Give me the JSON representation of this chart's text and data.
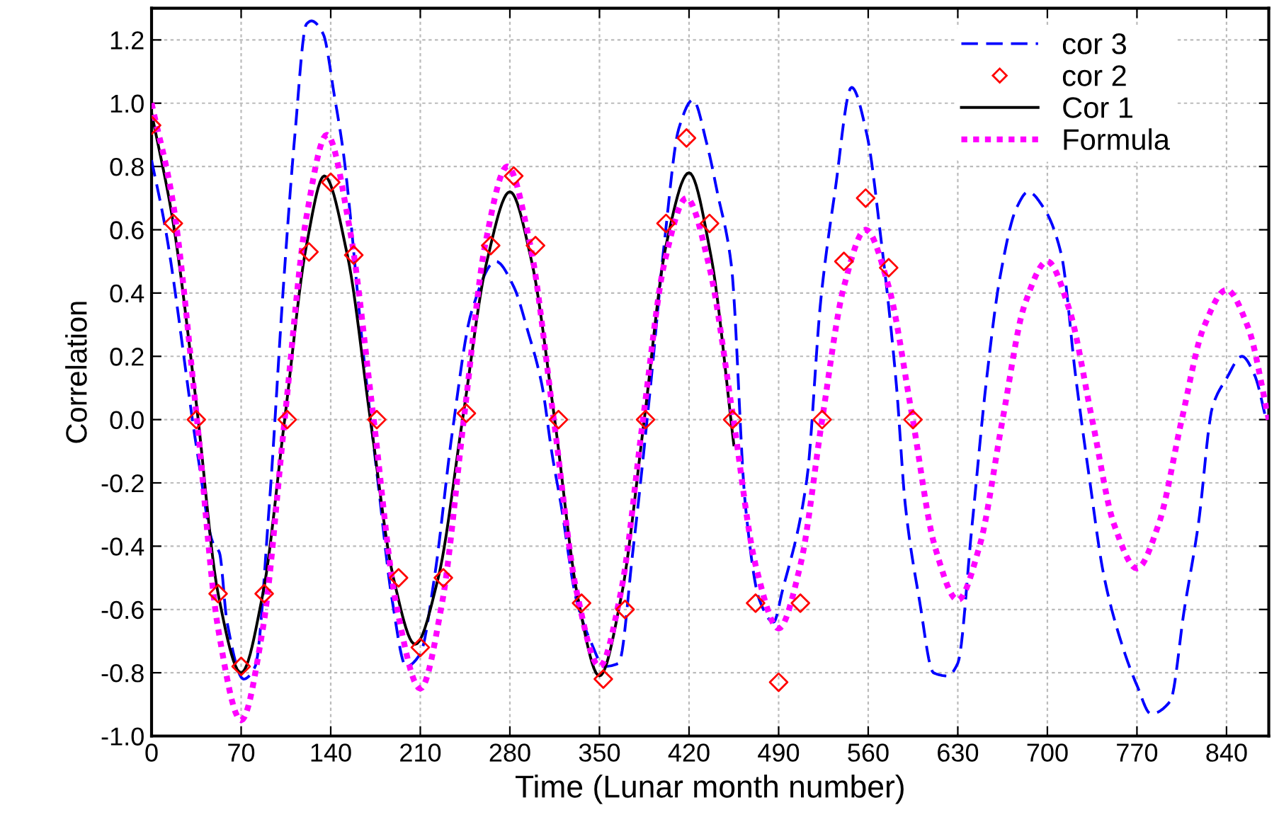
{
  "chart_data": {
    "type": "line",
    "xlabel": "Time (Lunar month number)",
    "ylabel": "Correlation",
    "xlim": [
      0,
      873
    ],
    "ylim": [
      -1.0,
      1.3
    ],
    "xticks": [
      0,
      70,
      140,
      210,
      280,
      350,
      420,
      490,
      560,
      630,
      700,
      770,
      840
    ],
    "yticks": [
      {
        "value": -1.0,
        "label": "-1.0"
      },
      {
        "value": -0.8,
        "label": "-0.8"
      },
      {
        "value": -0.6,
        "label": "-0.6"
      },
      {
        "value": -0.4,
        "label": "-0.4"
      },
      {
        "value": -0.2,
        "label": "-0.2"
      },
      {
        "value": 0.0,
        "label": "0.0"
      },
      {
        "value": 0.2,
        "label": "0.2"
      },
      {
        "value": 0.4,
        "label": "0.4"
      },
      {
        "value": 0.6,
        "label": "0.6"
      },
      {
        "value": 0.8,
        "label": "0.8"
      },
      {
        "value": 1.0,
        "label": "1.0"
      },
      {
        "value": 1.2,
        "label": "1.2"
      }
    ],
    "grid": true,
    "legend": "top right",
    "series": [
      {
        "name": "cor 3",
        "line_style": "dashed",
        "marker": "none",
        "color": "#0000ff",
        "x": [
          0,
          11,
          36,
          48,
          53,
          59,
          72,
          81,
          92,
          103,
          112,
          121,
          125,
          134,
          143,
          150,
          166,
          177,
          188,
          199,
          210,
          221,
          235,
          250,
          269,
          283,
          294,
          305,
          313,
          320,
          332,
          343,
          354,
          365,
          376,
          390,
          401,
          412,
          423,
          434,
          442,
          453,
          464,
          475,
          486,
          493,
          512,
          523,
          534,
          547,
          559,
          570,
          582,
          589,
          600,
          611,
          622,
          630,
          641,
          652,
          663,
          676,
          685,
          697,
          711,
          722,
          733,
          744,
          759,
          770,
          781,
          796,
          807,
          818,
          829,
          840,
          852,
          862,
          871
        ],
        "values": [
          0.82,
          0.6,
          -0.11,
          -0.39,
          -0.42,
          -0.64,
          -0.82,
          -0.78,
          -0.27,
          0.42,
          0.9,
          1.25,
          1.26,
          1.22,
          1.02,
          0.84,
          0.19,
          -0.2,
          -0.57,
          -0.78,
          -0.74,
          -0.5,
          -0.04,
          0.34,
          0.5,
          0.42,
          0.28,
          0.11,
          -0.11,
          -0.27,
          -0.57,
          -0.7,
          -0.78,
          -0.77,
          -0.42,
          0.11,
          0.57,
          0.92,
          1.01,
          0.87,
          0.72,
          0.49,
          -0.27,
          -0.57,
          -0.64,
          -0.54,
          -0.19,
          0.38,
          0.72,
          1.05,
          0.9,
          0.57,
          0.11,
          -0.27,
          -0.57,
          -0.8,
          -0.81,
          -0.77,
          -0.34,
          0.11,
          0.45,
          0.67,
          0.72,
          0.67,
          0.52,
          0.14,
          -0.19,
          -0.49,
          -0.72,
          -0.84,
          -0.93,
          -0.89,
          -0.6,
          -0.33,
          0.04,
          0.13,
          0.2,
          0.14,
          0.0
        ]
      },
      {
        "name": "cor 2",
        "type": "scatter",
        "marker": "diamond",
        "color": "#ff0000",
        "x": [
          0,
          17,
          35,
          52,
          70,
          88,
          106,
          123,
          140,
          158,
          176,
          193,
          210,
          228,
          246,
          265,
          283,
          300,
          318,
          336,
          353,
          370,
          386,
          402,
          418,
          436,
          454,
          472,
          490,
          507,
          524,
          541,
          558,
          576,
          595
        ],
        "values": [
          0.93,
          0.62,
          0.0,
          -0.55,
          -0.78,
          -0.55,
          0.0,
          0.53,
          0.75,
          0.52,
          0.0,
          -0.5,
          -0.72,
          -0.5,
          0.02,
          0.55,
          0.77,
          0.55,
          0.0,
          -0.58,
          -0.82,
          -0.6,
          0.0,
          0.62,
          0.89,
          0.62,
          0.0,
          -0.58,
          -0.83,
          -0.58,
          0.0,
          0.5,
          0.7,
          0.48,
          0.0
        ]
      },
      {
        "name": "Cor 1",
        "line_style": "solid",
        "marker": "none",
        "color": "#000000",
        "x": [
          0,
          17,
          35,
          52,
          70,
          87,
          104,
          121,
          135,
          153,
          171,
          189,
          206,
          224,
          243,
          262,
          280,
          297,
          315,
          333,
          350,
          367,
          385,
          402,
          420,
          437,
          455
        ],
        "values": [
          0.97,
          0.62,
          0.05,
          -0.55,
          -0.8,
          -0.55,
          0.0,
          0.55,
          0.77,
          0.52,
          0.0,
          -0.5,
          -0.71,
          -0.5,
          0.0,
          0.5,
          0.72,
          0.5,
          0.0,
          -0.56,
          -0.81,
          -0.56,
          0.0,
          0.55,
          0.78,
          0.52,
          -0.08
        ]
      },
      {
        "name": "Formula",
        "line_style": "dotted",
        "marker": "none",
        "color": "#ff00ff",
        "x": [
          0,
          17,
          35,
          52,
          70,
          87,
          104,
          121,
          137,
          155,
          173,
          191,
          210,
          227,
          244,
          261,
          278,
          296,
          314,
          332,
          350,
          367,
          384,
          401,
          418,
          436,
          454,
          472,
          490,
          507,
          524,
          541,
          558,
          576,
          594,
          612,
          630,
          647,
          665,
          682,
          700,
          717,
          735,
          752,
          770,
          787,
          805,
          822,
          840,
          857,
          873
        ],
        "values": [
          1.0,
          0.68,
          0.02,
          -0.66,
          -0.95,
          -0.66,
          0.0,
          0.64,
          0.9,
          0.6,
          0.02,
          -0.58,
          -0.85,
          -0.58,
          0.0,
          0.56,
          0.8,
          0.55,
          0.01,
          -0.54,
          -0.78,
          -0.54,
          0.0,
          0.5,
          0.7,
          0.48,
          0.02,
          -0.46,
          -0.66,
          -0.46,
          0.0,
          0.42,
          0.6,
          0.42,
          0.02,
          -0.4,
          -0.57,
          -0.4,
          0.0,
          0.36,
          0.5,
          0.35,
          0.0,
          -0.33,
          -0.47,
          -0.33,
          0.0,
          0.29,
          0.41,
          0.29,
          0.0
        ]
      }
    ]
  }
}
